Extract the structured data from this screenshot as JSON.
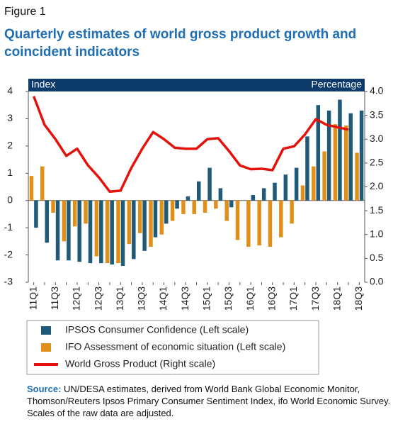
{
  "chart_data": {
    "type": "bar",
    "figure_label": "Figure 1",
    "title": "Quarterly estimates of world gross product growth and coincident indicators",
    "y_axis_label": "Index",
    "y2_axis_label": "Percentage",
    "categories": [
      "11Q1",
      null,
      "11Q3",
      null,
      "12Q1",
      null,
      "12Q3",
      null,
      "13Q1",
      null,
      "13Q3",
      null,
      "14Q1",
      null,
      "14Q3",
      null,
      "15Q1",
      null,
      "15Q3",
      null,
      "16Q1",
      null,
      "16Q3",
      null,
      "17Q1",
      null,
      "17Q3",
      null,
      "18Q1",
      null,
      "18Q3"
    ],
    "series": [
      {
        "name": "IPSOS Consumer Confidence (Left scale)",
        "type": "bar",
        "color": "#1f5a78",
        "values": [
          -1.0,
          -1.55,
          -2.2,
          -2.2,
          -2.25,
          -2.3,
          -2.3,
          -2.35,
          -2.4,
          -2.15,
          -1.85,
          -1.35,
          -0.85,
          -0.3,
          0.15,
          0.7,
          1.2,
          0.45,
          -0.25,
          0,
          0.2,
          0.45,
          0.65,
          0.95,
          1.2,
          2.35,
          3.5,
          3.3,
          3.7,
          3.2,
          3.3
        ]
      },
      {
        "name": "IFO Assessment of economic situation (Left scale)",
        "type": "bar",
        "color": "#e0901a",
        "values": [
          0.9,
          1.25,
          -0.45,
          -1.5,
          -0.95,
          -0.85,
          -2.05,
          -2.3,
          -2.3,
          -1.6,
          -1.2,
          -1.7,
          -1.25,
          -0.75,
          -0.5,
          -0.5,
          -0.45,
          -0.3,
          -0.75,
          -1.45,
          -1.7,
          -1.65,
          -1.7,
          -1.35,
          -0.85,
          0.55,
          1.25,
          1.8,
          2.8,
          2.75,
          1.75
        ]
      },
      {
        "name": "World Gross Product (Right scale)",
        "type": "line",
        "axis": "y2",
        "color": "#e3120b",
        "values": [
          3.9,
          3.3,
          3.0,
          2.65,
          2.8,
          2.45,
          2.2,
          1.9,
          1.92,
          2.4,
          2.8,
          3.15,
          3.0,
          2.82,
          2.8,
          2.8,
          3.0,
          3.02,
          2.75,
          2.45,
          2.37,
          2.38,
          2.35,
          2.8,
          2.85,
          3.1,
          3.42,
          3.3,
          3.25,
          3.2,
          null
        ]
      }
    ],
    "ylim": [
      -3,
      4
    ],
    "yticks": [
      -3,
      -2,
      -1,
      0,
      1,
      2,
      3,
      4
    ],
    "y2lim": [
      0,
      4
    ],
    "y2ticks": [
      {
        "value": 0,
        "label": "0.0"
      },
      {
        "value": 0.5,
        "label": "0.5"
      },
      {
        "value": 1,
        "label": "1.0"
      },
      {
        "value": 1.5,
        "label": "1.5"
      },
      {
        "value": 2,
        "label": "2.0"
      },
      {
        "value": 2.5,
        "label": "2.5"
      },
      {
        "value": 3,
        "label": "3.0"
      },
      {
        "value": 3.5,
        "label": "3.5"
      },
      {
        "value": 4,
        "label": "4.0"
      }
    ],
    "source_label": "Source:",
    "source_text": "UN/DESA estimates, derived from World Bank Global Economic Monitor, Thomson/Reuters Ipsos Primary Consumer Sentiment Index, ifo World Economic Survey. Scales of the raw data are adjusted."
  }
}
